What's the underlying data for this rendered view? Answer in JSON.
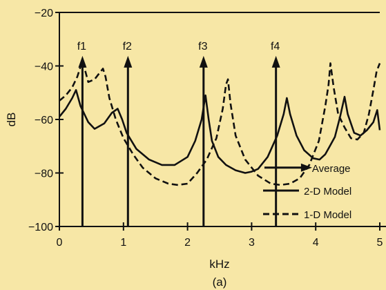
{
  "chart_data": {
    "type": "line",
    "caption": "(a)",
    "xlabel": "kHz",
    "ylabel": "dB",
    "xlim": [
      0,
      5
    ],
    "ylim": [
      -100,
      -20
    ],
    "xticks": [
      0,
      1,
      2,
      3,
      4,
      5
    ],
    "xtick_labels": [
      "0",
      "1",
      "2",
      "3",
      "4",
      "5"
    ],
    "yticks": [
      -100,
      -80,
      -60,
      -40,
      -20
    ],
    "ytick_labels": [
      "−100",
      "−80",
      "−60",
      "−40",
      "−20"
    ],
    "grid": false,
    "legend_position": "bottom-right",
    "annotations": [
      {
        "label": "f1",
        "x": 0.36,
        "y_from": -100,
        "y_to": -37
      },
      {
        "label": "f2",
        "x": 1.07,
        "y_from": -100,
        "y_to": -37
      },
      {
        "label": "f3",
        "x": 2.25,
        "y_from": -100,
        "y_to": -37
      },
      {
        "label": "f4",
        "x": 3.38,
        "y_from": -100,
        "y_to": -37
      }
    ],
    "legend_arrow": {
      "label": "Average",
      "x_from": 3.2,
      "x_to": 3.9,
      "y": -78
    },
    "series": [
      {
        "name": "2-D Model",
        "style": "solid",
        "x": [
          0,
          0.1,
          0.2,
          0.26,
          0.33,
          0.45,
          0.55,
          0.7,
          0.82,
          0.91,
          0.98,
          1.05,
          1.2,
          1.4,
          1.6,
          1.8,
          2.0,
          2.12,
          2.22,
          2.28,
          2.33,
          2.38,
          2.48,
          2.6,
          2.75,
          2.9,
          3.0,
          3.1,
          3.25,
          3.4,
          3.5,
          3.55,
          3.6,
          3.7,
          3.82,
          3.96,
          4.06,
          4.15,
          4.22,
          4.3,
          4.38,
          4.45,
          4.5,
          4.6,
          4.7,
          4.8,
          4.9,
          4.96,
          5.0
        ],
        "y": [
          -59,
          -56,
          -52,
          -49,
          -55,
          -61,
          -63.5,
          -61.5,
          -57.5,
          -56,
          -60,
          -65,
          -71,
          -75,
          -77,
          -77,
          -74,
          -68,
          -60,
          -51,
          -60,
          -68,
          -74,
          -77,
          -79,
          -80,
          -79.5,
          -78.5,
          -74,
          -66,
          -58,
          -52,
          -58,
          -66,
          -71.5,
          -74.5,
          -75,
          -73,
          -70,
          -66.5,
          -59,
          -51.5,
          -58,
          -65,
          -66,
          -64,
          -61,
          -56.5,
          -64
        ]
      },
      {
        "name": "1-D Model",
        "style": "dashed",
        "x": [
          0,
          0.1,
          0.2,
          0.28,
          0.36,
          0.45,
          0.55,
          0.63,
          0.68,
          0.72,
          0.78,
          0.88,
          1.0,
          1.15,
          1.3,
          1.5,
          1.7,
          1.85,
          2.0,
          2.15,
          2.3,
          2.45,
          2.55,
          2.6,
          2.63,
          2.67,
          2.75,
          2.9,
          3.1,
          3.3,
          3.45,
          3.6,
          3.75,
          3.9,
          4.05,
          4.15,
          4.2,
          4.23,
          4.28,
          4.35,
          4.45,
          4.55,
          4.65,
          4.75,
          4.83,
          4.9,
          4.95,
          5.0
        ],
        "y": [
          -53,
          -51,
          -48,
          -44,
          -38,
          -46,
          -45,
          -42.5,
          -41,
          -44,
          -52,
          -60,
          -67,
          -73,
          -78,
          -82,
          -84,
          -84.5,
          -84,
          -80,
          -75,
          -67,
          -56,
          -47,
          -45,
          -54,
          -66,
          -75,
          -81,
          -84,
          -84.5,
          -84,
          -82,
          -77,
          -68,
          -55,
          -47,
          -39,
          -48,
          -58,
          -63,
          -67,
          -67.5,
          -65,
          -58,
          -49,
          -42,
          -39
        ]
      }
    ]
  }
}
